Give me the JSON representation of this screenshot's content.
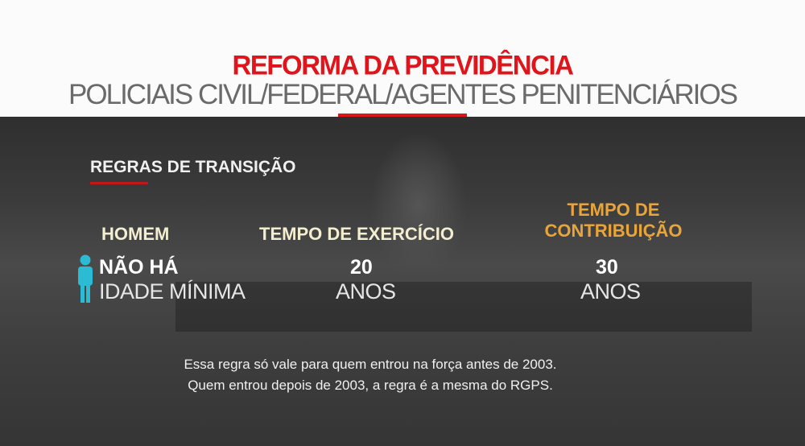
{
  "header": {
    "title": "REFORMA DA PREVIDÊNCIA",
    "subtitle": "POLICIAIS CIVIL/FEDERAL/AGENTES PENITENCIÁRIOS"
  },
  "section": {
    "title": "REGRAS DE TRANSIÇÃO"
  },
  "columns": [
    {
      "heading": "HOMEM",
      "value": "NÃO HÁ",
      "unit": "IDADE MÍNIMA",
      "icon": "person-icon"
    },
    {
      "heading": "TEMPO DE EXERCÍCIO",
      "value": "20",
      "unit": "ANOS"
    },
    {
      "heading_line1": "TEMPO DE",
      "heading_line2": "CONTRIBUIÇÃO",
      "value": "30",
      "unit": "ANOS"
    }
  ],
  "notes": [
    "Essa regra só vale para quem entrou na força antes de 2003.",
    "Quem entrou depois de 2003, a regra é a mesma do RGPS."
  ],
  "colors": {
    "title": "#e1141b",
    "accent_gold": "#e9a53a",
    "icon": "#2bbbd4"
  }
}
